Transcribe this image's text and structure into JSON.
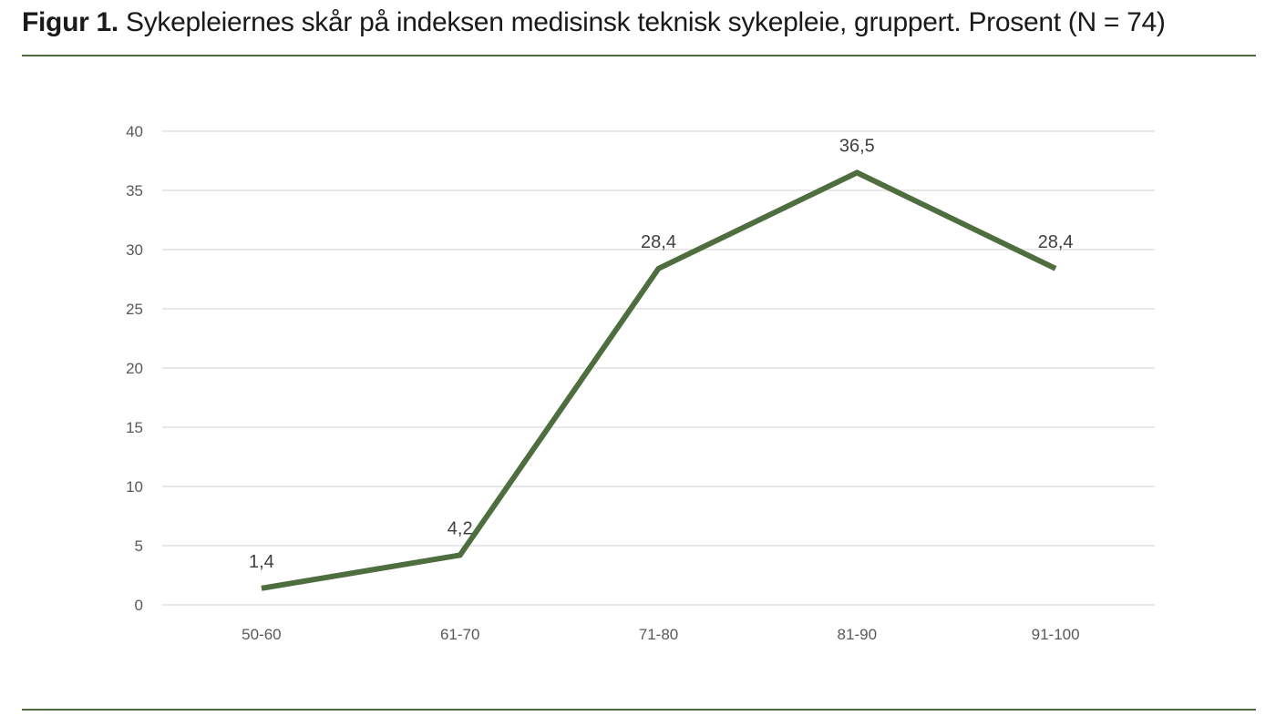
{
  "figure": {
    "label": "Figur 1.",
    "caption": "Sykepleiernes skår på indeksen medisinsk teknisk sykepleie, gruppert. Prosent (N = 74)"
  },
  "colors": {
    "line": "#4e6e3f",
    "rule": "#4e6e3f",
    "grid": "#d9d9d9"
  },
  "chart_data": {
    "type": "line",
    "categories": [
      "50-60",
      "61-70",
      "71-80",
      "81-90",
      "91-100"
    ],
    "series": [
      {
        "values": [
          1.4,
          4.2,
          28.4,
          36.5,
          28.4
        ],
        "data_labels": [
          "1,4",
          "4,2",
          "28,4",
          "36,5",
          "28,4"
        ]
      }
    ],
    "ylim": [
      0,
      40
    ],
    "yticks": [
      0,
      5,
      10,
      15,
      20,
      25,
      30,
      35,
      40
    ],
    "grid": true,
    "legend": "none"
  }
}
